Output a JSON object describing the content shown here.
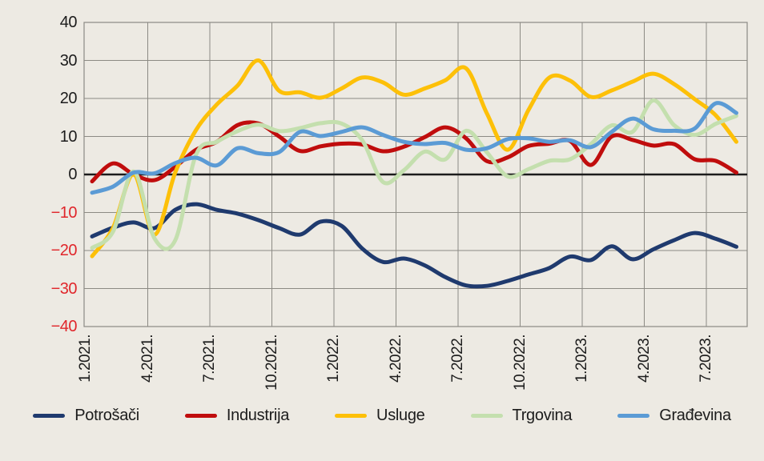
{
  "chart_data": {
    "type": "line",
    "title": "",
    "months": [
      "1.2021.",
      "2.2021.",
      "3.2021.",
      "4.2021.",
      "5.2021.",
      "6.2021.",
      "7.2021.",
      "8.2021.",
      "9.2021.",
      "10.2021.",
      "11.2021.",
      "12.2021.",
      "1.2022.",
      "2.2022.",
      "3.2022.",
      "4.2022.",
      "5.2022.",
      "6.2022.",
      "7.2022.",
      "8.2022.",
      "9.2022.",
      "10.2022.",
      "11.2022.",
      "12.2022.",
      "1.2023.",
      "2.2023.",
      "3.2023.",
      "4.2023.",
      "5.2023.",
      "6.2023.",
      "7.2023.",
      "8.2023."
    ],
    "x_tick_labels": [
      "1.2021.",
      "4.2021.",
      "7.2021.",
      "10.2021.",
      "1.2022.",
      "4.2022.",
      "7.2022.",
      "10.2022.",
      "1.2023.",
      "4.2023.",
      "7.2023."
    ],
    "y_ticks": [
      40,
      30,
      20,
      10,
      0,
      -10,
      -20,
      -30,
      -40
    ],
    "ylim": [
      -40,
      40
    ],
    "grid": true,
    "legend_position": "bottom",
    "series": [
      {
        "name": "Potrošači",
        "color": "#1f3a6e",
        "values": [
          -16.3,
          -14,
          -12.6,
          -14.1,
          -9.3,
          -7.8,
          -9.3,
          -10.3,
          -12,
          -14.1,
          -15.8,
          -12.4,
          -13.5,
          -19.5,
          -23,
          -22.1,
          -23.9,
          -27,
          -29.2,
          -29.3,
          -28,
          -26.3,
          -24.6,
          -21.6,
          -22.5,
          -18.9,
          -22.3,
          -19.7,
          -17.3,
          -15.4,
          -16.9,
          -19
        ]
      },
      {
        "name": "Industrija",
        "color": "#c00d0d",
        "values": [
          -1.8,
          2.9,
          0,
          -1.5,
          2,
          6.5,
          8.6,
          13,
          13.4,
          10,
          6.2,
          7.4,
          8.1,
          7.9,
          6.1,
          7.3,
          9.8,
          12.4,
          9.5,
          3.5,
          4.5,
          7.5,
          8.1,
          8.8,
          2.5,
          10,
          9.1,
          7.6,
          8,
          4,
          3.6,
          0.5
        ]
      },
      {
        "name": "Usluge",
        "color": "#fdc008",
        "values": [
          -21.5,
          -14.1,
          0,
          -15.8,
          0.5,
          11.7,
          18.4,
          23.4,
          30,
          22,
          21.6,
          20.2,
          22.6,
          25.5,
          24.2,
          21,
          22.6,
          24.8,
          27.9,
          16,
          6.5,
          17,
          25.5,
          24.7,
          20.4,
          22.1,
          24.4,
          26.5,
          23.8,
          19.8,
          15.6,
          8.6
        ]
      },
      {
        "name": "Trgovina",
        "color": "#c4dfae",
        "values": [
          -19.3,
          -15.1,
          0.8,
          -16.8,
          -17.3,
          5.2,
          8.6,
          11.4,
          13.1,
          11.4,
          12.2,
          13.5,
          13.4,
          9,
          -2,
          1.1,
          6,
          4,
          11.5,
          5.8,
          -0.5,
          1.4,
          3.6,
          4,
          8,
          12.9,
          11.2,
          19.5,
          13,
          10.4,
          13.3,
          15.4
        ]
      },
      {
        "name": "Građevina",
        "color": "#5b9bd5",
        "values": [
          -4.8,
          -3.2,
          0.5,
          0.3,
          3,
          4.4,
          2.4,
          6.9,
          5.6,
          5.9,
          11.2,
          10.1,
          11.2,
          12.4,
          10.4,
          8.6,
          8,
          8.3,
          6.5,
          6.9,
          9.3,
          9.5,
          8.6,
          9,
          7.2,
          11.2,
          14.7,
          11.9,
          11.5,
          12.1,
          18.7,
          16.2
        ]
      }
    ]
  },
  "style": {
    "background": "#edeae3",
    "grid_color": "#8c8a84",
    "frame_color": "#8c8a84",
    "zero_line_color": "#1c1c1c",
    "tick_color": "#1c1c1c",
    "negative_tick_color": "#e0262b",
    "legend_text_color": "#1c1c1c"
  }
}
